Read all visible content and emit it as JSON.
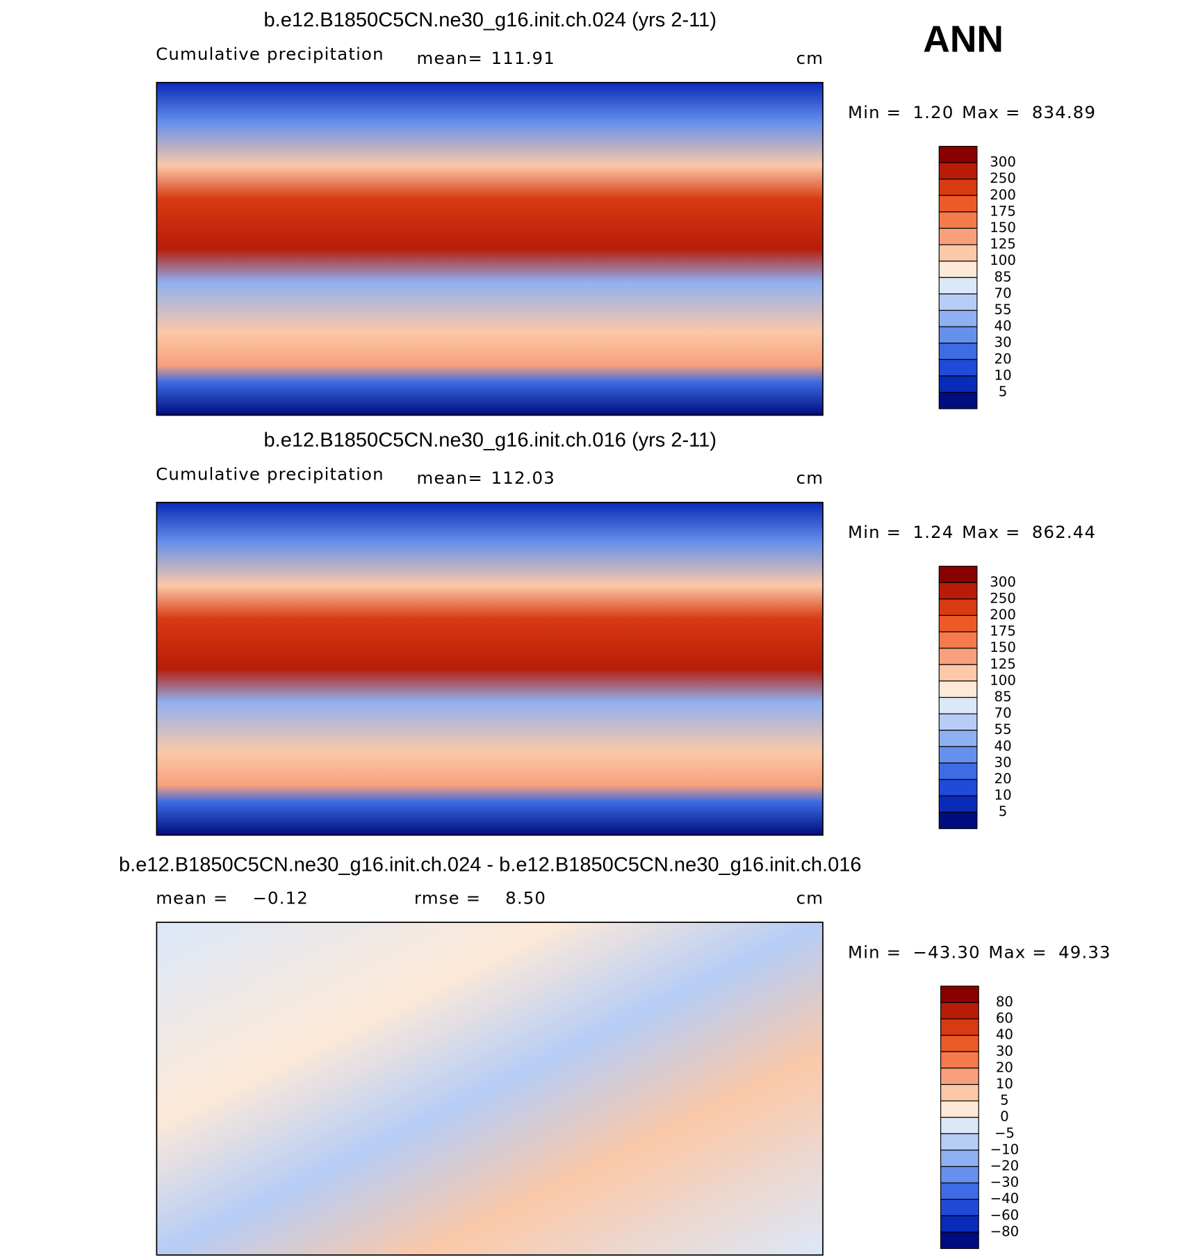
{
  "label": "ANN",
  "panels": [
    {
      "title": "b.e12.B1850C5CN.ne30_g16.init.ch.024 (yrs 2-11)",
      "subtitle": "Cumulative precipitation",
      "stats": [
        {
          "text": "mean=",
          "value": "111.91"
        }
      ],
      "units": "cm",
      "min_text": "Min =",
      "min": "1.20",
      "max_text": "Max =",
      "max": "834.89",
      "colorbar": {
        "labels": [
          "300",
          "250",
          "200",
          "175",
          "150",
          "125",
          "100",
          "85",
          "70",
          "55",
          "40",
          "30",
          "20",
          "10",
          "5"
        ],
        "colors": [
          "#880000",
          "#b81c08",
          "#d83a12",
          "#ec5a26",
          "#f57a4c",
          "#f8a07c",
          "#fbc8a8",
          "#fde9d8",
          "#dbe8fa",
          "#b6cdf6",
          "#8fb0f1",
          "#6690ec",
          "#3d6ce4",
          "#1f4bd8",
          "#0a2ab8",
          "#000d80"
        ]
      }
    },
    {
      "title": "b.e12.B1850C5CN.ne30_g16.init.ch.016 (yrs 2-11)",
      "subtitle": "Cumulative precipitation",
      "stats": [
        {
          "text": "mean=",
          "value": "112.03"
        }
      ],
      "units": "cm",
      "min_text": "Min =",
      "min": "1.24",
      "max_text": "Max =",
      "max": "862.44",
      "colorbar": {
        "labels": [
          "300",
          "250",
          "200",
          "175",
          "150",
          "125",
          "100",
          "85",
          "70",
          "55",
          "40",
          "30",
          "20",
          "10",
          "5"
        ],
        "colors": [
          "#880000",
          "#b81c08",
          "#d83a12",
          "#ec5a26",
          "#f57a4c",
          "#f8a07c",
          "#fbc8a8",
          "#fde9d8",
          "#dbe8fa",
          "#b6cdf6",
          "#8fb0f1",
          "#6690ec",
          "#3d6ce4",
          "#1f4bd8",
          "#0a2ab8",
          "#000d80"
        ]
      }
    },
    {
      "title": "b.e12.B1850C5CN.ne30_g16.init.ch.024 - b.e12.B1850C5CN.ne30_g16.init.ch.016",
      "stats": [
        {
          "text": "mean =",
          "value": "−0.12"
        },
        {
          "text": "rmse =",
          "value": "8.50"
        }
      ],
      "units": "cm",
      "min_text": "Min =",
      "min": "−43.30",
      "max_text": "Max =",
      "max": "49.33",
      "colorbar": {
        "labels": [
          "80",
          "60",
          "40",
          "30",
          "20",
          "10",
          "5",
          "0",
          "−5",
          "−10",
          "−20",
          "−30",
          "−40",
          "−60",
          "−80"
        ],
        "colors": [
          "#880000",
          "#b81c08",
          "#d83a12",
          "#ec5a26",
          "#f57a4c",
          "#f8a07c",
          "#fbc8a8",
          "#fde9d8",
          "#dbe8fa",
          "#b6cdf6",
          "#8fb0f1",
          "#6690ec",
          "#3d6ce4",
          "#1f4bd8",
          "#0a2ab8",
          "#000d80"
        ]
      }
    }
  ]
}
